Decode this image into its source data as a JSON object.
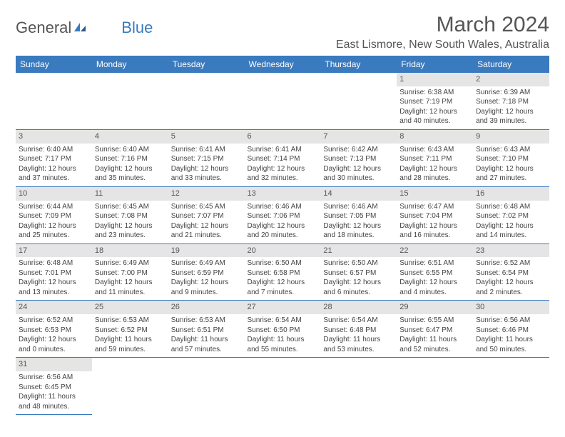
{
  "brand": {
    "general": "General",
    "blue": "Blue"
  },
  "title": "March 2024",
  "location": "East Lismore, New South Wales, Australia",
  "colors": {
    "header_bg": "#3a7abf",
    "header_text": "#ffffff",
    "day_num_bg": "#e5e5e5",
    "text": "#444444",
    "border": "#3a7abf"
  },
  "dayHeaders": [
    "Sunday",
    "Monday",
    "Tuesday",
    "Wednesday",
    "Thursday",
    "Friday",
    "Saturday"
  ],
  "weeks": [
    [
      null,
      null,
      null,
      null,
      null,
      {
        "n": "1",
        "sunrise": "Sunrise: 6:38 AM",
        "sunset": "Sunset: 7:19 PM",
        "daylight": "Daylight: 12 hours and 40 minutes."
      },
      {
        "n": "2",
        "sunrise": "Sunrise: 6:39 AM",
        "sunset": "Sunset: 7:18 PM",
        "daylight": "Daylight: 12 hours and 39 minutes."
      }
    ],
    [
      {
        "n": "3",
        "sunrise": "Sunrise: 6:40 AM",
        "sunset": "Sunset: 7:17 PM",
        "daylight": "Daylight: 12 hours and 37 minutes."
      },
      {
        "n": "4",
        "sunrise": "Sunrise: 6:40 AM",
        "sunset": "Sunset: 7:16 PM",
        "daylight": "Daylight: 12 hours and 35 minutes."
      },
      {
        "n": "5",
        "sunrise": "Sunrise: 6:41 AM",
        "sunset": "Sunset: 7:15 PM",
        "daylight": "Daylight: 12 hours and 33 minutes."
      },
      {
        "n": "6",
        "sunrise": "Sunrise: 6:41 AM",
        "sunset": "Sunset: 7:14 PM",
        "daylight": "Daylight: 12 hours and 32 minutes."
      },
      {
        "n": "7",
        "sunrise": "Sunrise: 6:42 AM",
        "sunset": "Sunset: 7:13 PM",
        "daylight": "Daylight: 12 hours and 30 minutes."
      },
      {
        "n": "8",
        "sunrise": "Sunrise: 6:43 AM",
        "sunset": "Sunset: 7:11 PM",
        "daylight": "Daylight: 12 hours and 28 minutes."
      },
      {
        "n": "9",
        "sunrise": "Sunrise: 6:43 AM",
        "sunset": "Sunset: 7:10 PM",
        "daylight": "Daylight: 12 hours and 27 minutes."
      }
    ],
    [
      {
        "n": "10",
        "sunrise": "Sunrise: 6:44 AM",
        "sunset": "Sunset: 7:09 PM",
        "daylight": "Daylight: 12 hours and 25 minutes."
      },
      {
        "n": "11",
        "sunrise": "Sunrise: 6:45 AM",
        "sunset": "Sunset: 7:08 PM",
        "daylight": "Daylight: 12 hours and 23 minutes."
      },
      {
        "n": "12",
        "sunrise": "Sunrise: 6:45 AM",
        "sunset": "Sunset: 7:07 PM",
        "daylight": "Daylight: 12 hours and 21 minutes."
      },
      {
        "n": "13",
        "sunrise": "Sunrise: 6:46 AM",
        "sunset": "Sunset: 7:06 PM",
        "daylight": "Daylight: 12 hours and 20 minutes."
      },
      {
        "n": "14",
        "sunrise": "Sunrise: 6:46 AM",
        "sunset": "Sunset: 7:05 PM",
        "daylight": "Daylight: 12 hours and 18 minutes."
      },
      {
        "n": "15",
        "sunrise": "Sunrise: 6:47 AM",
        "sunset": "Sunset: 7:04 PM",
        "daylight": "Daylight: 12 hours and 16 minutes."
      },
      {
        "n": "16",
        "sunrise": "Sunrise: 6:48 AM",
        "sunset": "Sunset: 7:02 PM",
        "daylight": "Daylight: 12 hours and 14 minutes."
      }
    ],
    [
      {
        "n": "17",
        "sunrise": "Sunrise: 6:48 AM",
        "sunset": "Sunset: 7:01 PM",
        "daylight": "Daylight: 12 hours and 13 minutes."
      },
      {
        "n": "18",
        "sunrise": "Sunrise: 6:49 AM",
        "sunset": "Sunset: 7:00 PM",
        "daylight": "Daylight: 12 hours and 11 minutes."
      },
      {
        "n": "19",
        "sunrise": "Sunrise: 6:49 AM",
        "sunset": "Sunset: 6:59 PM",
        "daylight": "Daylight: 12 hours and 9 minutes."
      },
      {
        "n": "20",
        "sunrise": "Sunrise: 6:50 AM",
        "sunset": "Sunset: 6:58 PM",
        "daylight": "Daylight: 12 hours and 7 minutes."
      },
      {
        "n": "21",
        "sunrise": "Sunrise: 6:50 AM",
        "sunset": "Sunset: 6:57 PM",
        "daylight": "Daylight: 12 hours and 6 minutes."
      },
      {
        "n": "22",
        "sunrise": "Sunrise: 6:51 AM",
        "sunset": "Sunset: 6:55 PM",
        "daylight": "Daylight: 12 hours and 4 minutes."
      },
      {
        "n": "23",
        "sunrise": "Sunrise: 6:52 AM",
        "sunset": "Sunset: 6:54 PM",
        "daylight": "Daylight: 12 hours and 2 minutes."
      }
    ],
    [
      {
        "n": "24",
        "sunrise": "Sunrise: 6:52 AM",
        "sunset": "Sunset: 6:53 PM",
        "daylight": "Daylight: 12 hours and 0 minutes."
      },
      {
        "n": "25",
        "sunrise": "Sunrise: 6:53 AM",
        "sunset": "Sunset: 6:52 PM",
        "daylight": "Daylight: 11 hours and 59 minutes."
      },
      {
        "n": "26",
        "sunrise": "Sunrise: 6:53 AM",
        "sunset": "Sunset: 6:51 PM",
        "daylight": "Daylight: 11 hours and 57 minutes."
      },
      {
        "n": "27",
        "sunrise": "Sunrise: 6:54 AM",
        "sunset": "Sunset: 6:50 PM",
        "daylight": "Daylight: 11 hours and 55 minutes."
      },
      {
        "n": "28",
        "sunrise": "Sunrise: 6:54 AM",
        "sunset": "Sunset: 6:48 PM",
        "daylight": "Daylight: 11 hours and 53 minutes."
      },
      {
        "n": "29",
        "sunrise": "Sunrise: 6:55 AM",
        "sunset": "Sunset: 6:47 PM",
        "daylight": "Daylight: 11 hours and 52 minutes."
      },
      {
        "n": "30",
        "sunrise": "Sunrise: 6:56 AM",
        "sunset": "Sunset: 6:46 PM",
        "daylight": "Daylight: 11 hours and 50 minutes."
      }
    ],
    [
      {
        "n": "31",
        "sunrise": "Sunrise: 6:56 AM",
        "sunset": "Sunset: 6:45 PM",
        "daylight": "Daylight: 11 hours and 48 minutes."
      },
      null,
      null,
      null,
      null,
      null,
      null
    ]
  ]
}
